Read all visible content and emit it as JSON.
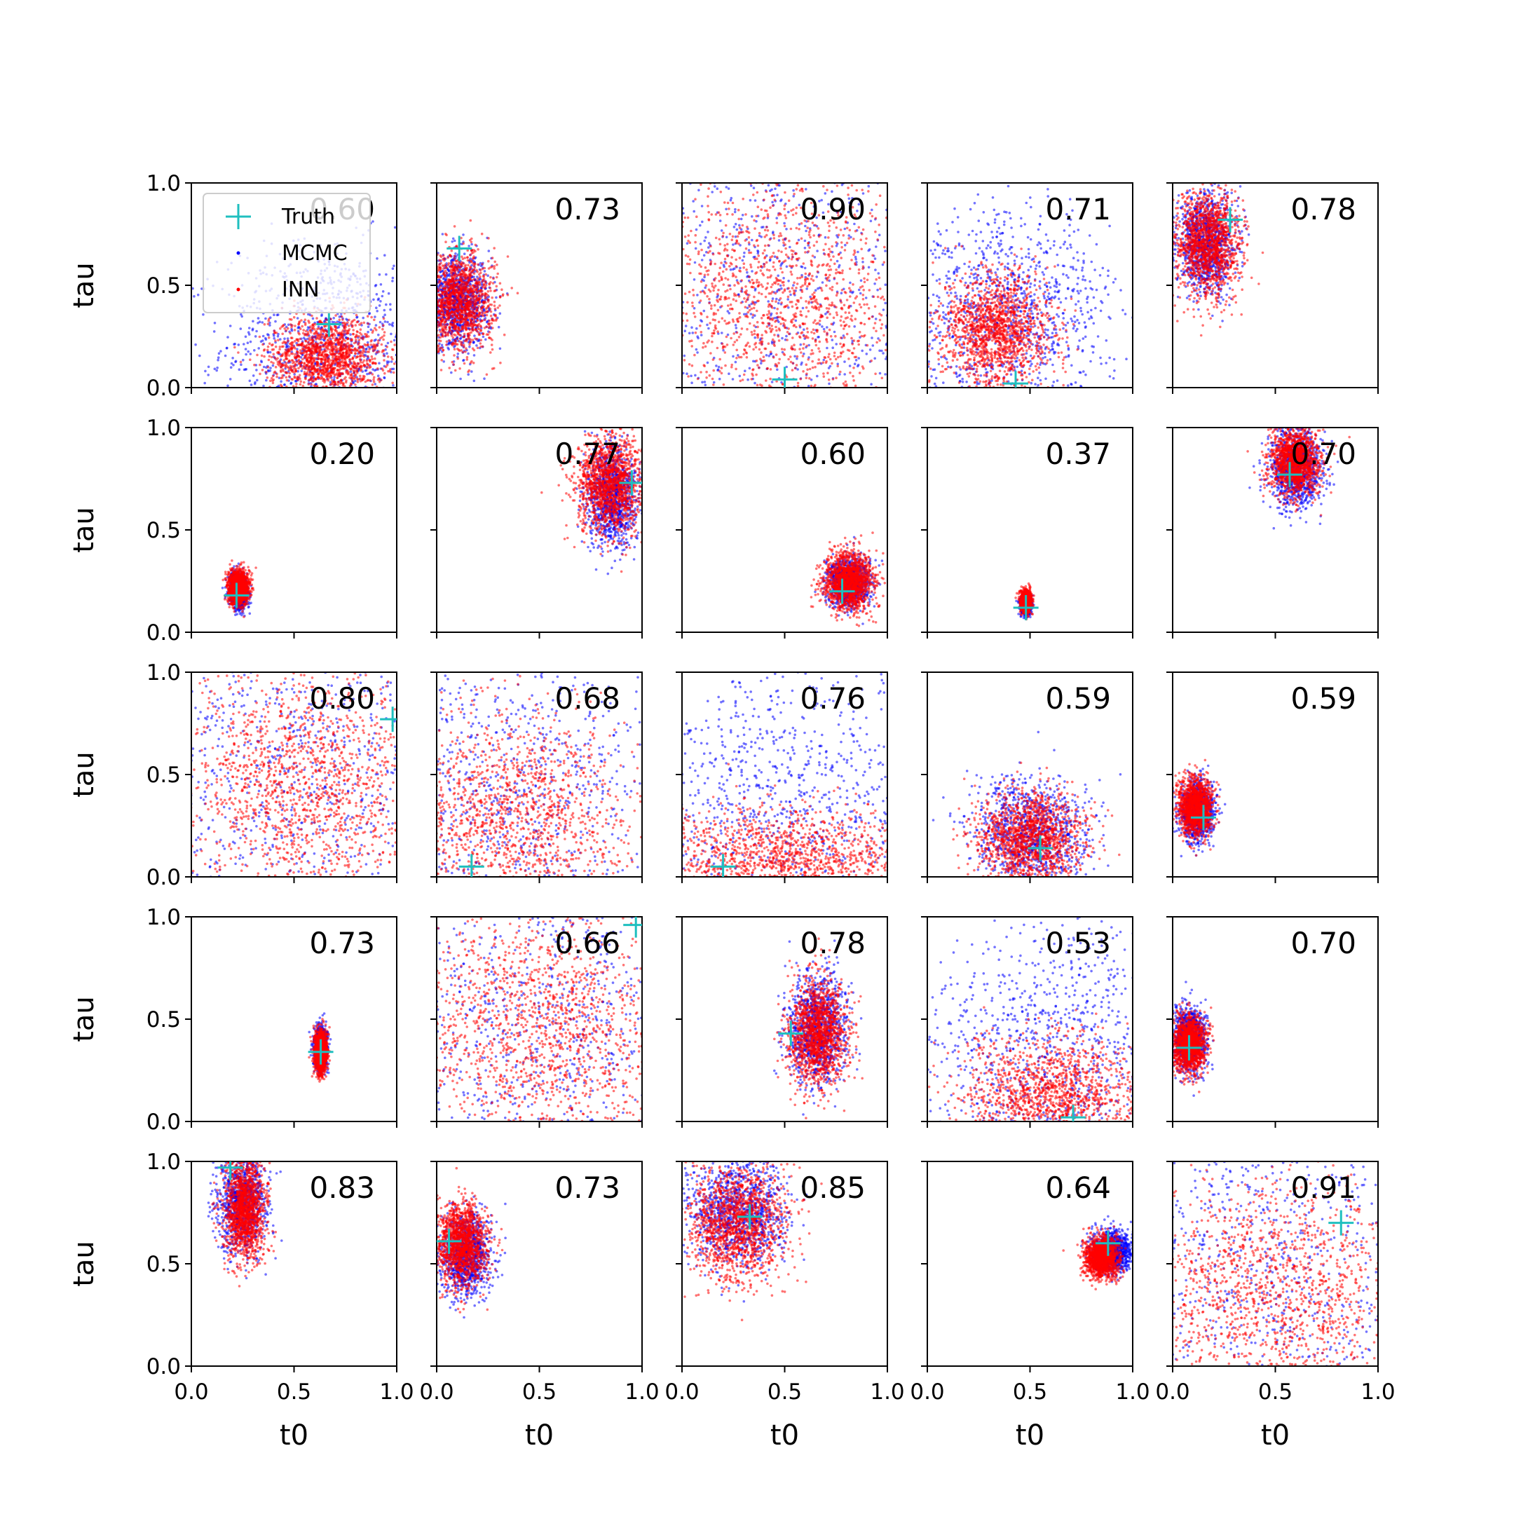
{
  "chart_data": {
    "type": "scatter",
    "layout": {
      "rows": 5,
      "cols": 5
    },
    "xlabel": "t0",
    "ylabel": "tau",
    "xlim": [
      0,
      1
    ],
    "ylim": [
      0,
      1
    ],
    "xticks": [
      "0.0",
      "0.5",
      "1.0"
    ],
    "yticks": [
      "0.0",
      "0.5",
      "1.0"
    ],
    "legend": {
      "placement": "upper-left of first panel",
      "entries": [
        {
          "label": "Truth",
          "marker": "plus",
          "color": "#1fbfbf"
        },
        {
          "label": "MCMC",
          "marker": "dot",
          "color": "#0000ff"
        },
        {
          "label": "INN",
          "marker": "dot",
          "color": "#ff0000"
        }
      ]
    },
    "colors": {
      "truth": "#1fbfbf",
      "mcmc": "#0000ff",
      "inn": "#ff0000"
    },
    "panels": [
      {
        "score": "0.60",
        "truth": [
          0.67,
          0.31
        ],
        "inn": {
          "cx": 0.66,
          "cy": 0.15,
          "sx": 0.14,
          "sy": 0.1
        },
        "mcmc": {
          "cx": 0.65,
          "cy": 0.2,
          "sx": 0.25,
          "sy": 0.25
        }
      },
      {
        "score": "0.73",
        "truth": [
          0.11,
          0.68
        ],
        "inn": {
          "cx": 0.1,
          "cy": 0.42,
          "sx": 0.09,
          "sy": 0.12
        },
        "mcmc": {
          "cx": 0.1,
          "cy": 0.42,
          "sx": 0.08,
          "sy": 0.11
        }
      },
      {
        "score": "0.90",
        "truth": [
          0.5,
          0.04
        ],
        "inn": {
          "cx": 0.5,
          "cy": 0.42,
          "sx": 0.32,
          "sy": 0.3
        },
        "mcmc": {
          "cx": 0.5,
          "cy": 0.5,
          "sx": 0.5,
          "sy": 0.5
        }
      },
      {
        "score": "0.71",
        "truth": [
          0.43,
          0.02
        ],
        "inn": {
          "cx": 0.34,
          "cy": 0.28,
          "sx": 0.13,
          "sy": 0.14
        },
        "mcmc": {
          "cx": 0.4,
          "cy": 0.35,
          "sx": 0.25,
          "sy": 0.25
        }
      },
      {
        "score": "0.78",
        "truth": [
          0.28,
          0.82
        ],
        "inn": {
          "cx": 0.17,
          "cy": 0.7,
          "sx": 0.08,
          "sy": 0.13
        },
        "mcmc": {
          "cx": 0.16,
          "cy": 0.7,
          "sx": 0.07,
          "sy": 0.12
        }
      },
      {
        "score": "0.20",
        "truth": [
          0.22,
          0.18
        ],
        "inn": {
          "cx": 0.23,
          "cy": 0.22,
          "sx": 0.025,
          "sy": 0.04
        },
        "mcmc": {
          "cx": 0.23,
          "cy": 0.2,
          "sx": 0.022,
          "sy": 0.04
        }
      },
      {
        "score": "0.77",
        "truth": [
          0.95,
          0.73
        ],
        "inn": {
          "cx": 0.84,
          "cy": 0.72,
          "sx": 0.08,
          "sy": 0.12
        },
        "mcmc": {
          "cx": 0.85,
          "cy": 0.66,
          "sx": 0.06,
          "sy": 0.12
        }
      },
      {
        "score": "0.60",
        "truth": [
          0.78,
          0.2
        ],
        "inn": {
          "cx": 0.81,
          "cy": 0.25,
          "sx": 0.06,
          "sy": 0.07
        },
        "mcmc": {
          "cx": 0.81,
          "cy": 0.24,
          "sx": 0.05,
          "sy": 0.06
        }
      },
      {
        "score": "0.37",
        "truth": [
          0.48,
          0.12
        ],
        "inn": {
          "cx": 0.48,
          "cy": 0.15,
          "sx": 0.012,
          "sy": 0.025
        },
        "mcmc": {
          "cx": 0.48,
          "cy": 0.13,
          "sx": 0.012,
          "sy": 0.02
        }
      },
      {
        "score": "0.70",
        "truth": [
          0.57,
          0.77
        ],
        "inn": {
          "cx": 0.6,
          "cy": 0.83,
          "sx": 0.06,
          "sy": 0.08
        },
        "mcmc": {
          "cx": 0.6,
          "cy": 0.8,
          "sx": 0.06,
          "sy": 0.1
        }
      },
      {
        "score": "0.80",
        "truth": [
          0.98,
          0.77
        ],
        "inn": {
          "cx": 0.55,
          "cy": 0.45,
          "sx": 0.3,
          "sy": 0.3
        },
        "mcmc": {
          "cx": 0.5,
          "cy": 0.5,
          "sx": 0.5,
          "sy": 0.5
        }
      },
      {
        "score": "0.68",
        "truth": [
          0.17,
          0.05
        ],
        "inn": {
          "cx": 0.35,
          "cy": 0.3,
          "sx": 0.3,
          "sy": 0.25
        },
        "mcmc": {
          "cx": 0.35,
          "cy": 0.45,
          "sx": 0.45,
          "sy": 0.45
        }
      },
      {
        "score": "0.76",
        "truth": [
          0.2,
          0.05
        ],
        "inn": {
          "cx": 0.5,
          "cy": 0.08,
          "sx": 0.35,
          "sy": 0.12
        },
        "mcmc": {
          "cx": 0.5,
          "cy": 0.35,
          "sx": 0.45,
          "sy": 0.35
        }
      },
      {
        "score": "0.59",
        "truth": [
          0.55,
          0.14
        ],
        "inn": {
          "cx": 0.5,
          "cy": 0.18,
          "sx": 0.13,
          "sy": 0.12
        },
        "mcmc": {
          "cx": 0.5,
          "cy": 0.2,
          "sx": 0.14,
          "sy": 0.14
        }
      },
      {
        "score": "0.59",
        "truth": [
          0.15,
          0.29
        ],
        "inn": {
          "cx": 0.11,
          "cy": 0.34,
          "sx": 0.04,
          "sy": 0.07
        },
        "mcmc": {
          "cx": 0.12,
          "cy": 0.32,
          "sx": 0.04,
          "sy": 0.07
        }
      },
      {
        "score": "0.73",
        "truth": [
          0.63,
          0.34
        ],
        "inn": {
          "cx": 0.63,
          "cy": 0.34,
          "sx": 0.015,
          "sy": 0.05
        },
        "mcmc": {
          "cx": 0.63,
          "cy": 0.36,
          "sx": 0.015,
          "sy": 0.05
        }
      },
      {
        "score": "0.66",
        "truth": [
          0.97,
          0.96
        ],
        "inn": {
          "cx": 0.5,
          "cy": 0.45,
          "sx": 0.32,
          "sy": 0.3
        },
        "mcmc": {
          "cx": 0.5,
          "cy": 0.5,
          "sx": 0.5,
          "sy": 0.5
        }
      },
      {
        "score": "0.78",
        "truth": [
          0.53,
          0.43
        ],
        "inn": {
          "cx": 0.66,
          "cy": 0.43,
          "sx": 0.07,
          "sy": 0.13
        },
        "mcmc": {
          "cx": 0.66,
          "cy": 0.45,
          "sx": 0.07,
          "sy": 0.13
        }
      },
      {
        "score": "0.53",
        "truth": [
          0.71,
          0.02
        ],
        "inn": {
          "cx": 0.6,
          "cy": 0.12,
          "sx": 0.22,
          "sy": 0.15
        },
        "mcmc": {
          "cx": 0.6,
          "cy": 0.35,
          "sx": 0.35,
          "sy": 0.35
        }
      },
      {
        "score": "0.70",
        "truth": [
          0.08,
          0.36
        ],
        "inn": {
          "cx": 0.08,
          "cy": 0.38,
          "sx": 0.04,
          "sy": 0.07
        },
        "mcmc": {
          "cx": 0.08,
          "cy": 0.4,
          "sx": 0.04,
          "sy": 0.08
        }
      },
      {
        "score": "0.83",
        "truth": [
          0.19,
          0.97
        ],
        "inn": {
          "cx": 0.26,
          "cy": 0.77,
          "sx": 0.05,
          "sy": 0.13
        },
        "mcmc": {
          "cx": 0.25,
          "cy": 0.8,
          "sx": 0.06,
          "sy": 0.12
        }
      },
      {
        "score": "0.73",
        "truth": [
          0.06,
          0.61
        ],
        "inn": {
          "cx": 0.12,
          "cy": 0.6,
          "sx": 0.06,
          "sy": 0.1
        },
        "mcmc": {
          "cx": 0.14,
          "cy": 0.55,
          "sx": 0.06,
          "sy": 0.1
        }
      },
      {
        "score": "0.85",
        "truth": [
          0.33,
          0.73
        ],
        "inn": {
          "cx": 0.27,
          "cy": 0.7,
          "sx": 0.12,
          "sy": 0.14
        },
        "mcmc": {
          "cx": 0.27,
          "cy": 0.75,
          "sx": 0.12,
          "sy": 0.13
        }
      },
      {
        "score": "0.64",
        "truth": [
          0.88,
          0.6
        ],
        "inn": {
          "cx": 0.85,
          "cy": 0.53,
          "sx": 0.04,
          "sy": 0.05
        },
        "mcmc": {
          "cx": 0.9,
          "cy": 0.56,
          "sx": 0.05,
          "sy": 0.05
        }
      },
      {
        "score": "0.91",
        "truth": [
          0.82,
          0.7
        ],
        "inn": {
          "cx": 0.5,
          "cy": 0.35,
          "sx": 0.35,
          "sy": 0.28
        },
        "mcmc": {
          "cx": 0.5,
          "cy": 0.5,
          "sx": 0.5,
          "sy": 0.5
        }
      }
    ]
  }
}
